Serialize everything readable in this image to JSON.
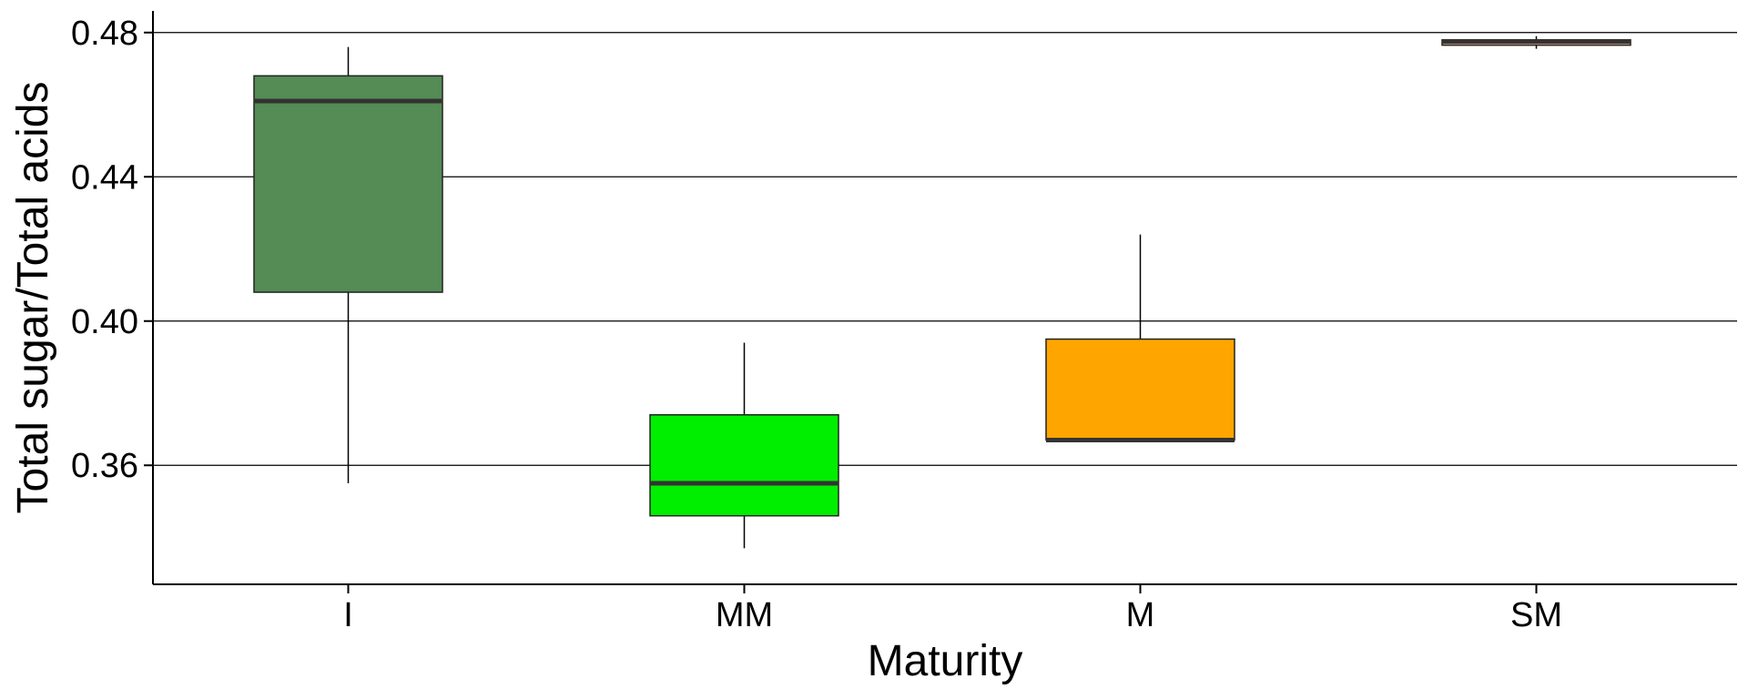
{
  "chart_data": {
    "type": "box",
    "title": "",
    "xlabel": "Maturity",
    "ylabel": "Total sugar/Total acids",
    "ylim": [
      0.327,
      0.486
    ],
    "yticks": [
      0.36,
      0.4,
      0.44,
      0.48
    ],
    "ytick_labels": [
      "0.36",
      "0.40",
      "0.44",
      "0.48"
    ],
    "grid": "horizontal major lines",
    "legend": "none",
    "categories": [
      "I",
      "MM",
      "M",
      "SM"
    ],
    "boxes": [
      {
        "category": "I",
        "whisker_low": 0.355,
        "q1": 0.408,
        "median": 0.461,
        "q3": 0.468,
        "whisker_high": 0.476,
        "color": "#558b55"
      },
      {
        "category": "MM",
        "whisker_low": 0.337,
        "q1": 0.346,
        "median": 0.355,
        "q3": 0.374,
        "whisker_high": 0.394,
        "color": "#00ee00"
      },
      {
        "category": "M",
        "whisker_low": 0.367,
        "q1": 0.367,
        "median": 0.367,
        "q3": 0.395,
        "whisker_high": 0.424,
        "color": "#ffa500"
      },
      {
        "category": "SM",
        "whisker_low": 0.4755,
        "q1": 0.4765,
        "median": 0.4775,
        "q3": 0.478,
        "whisker_high": 0.479,
        "color": "#f4a37a"
      }
    ]
  }
}
